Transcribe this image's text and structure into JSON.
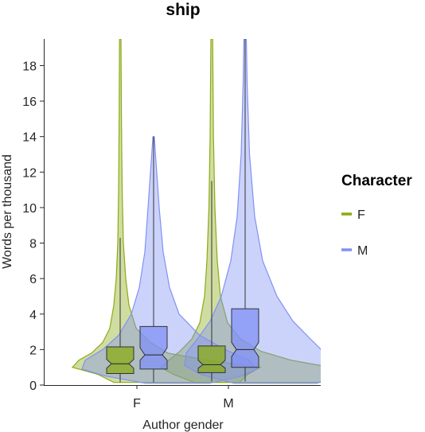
{
  "chart_data": {
    "type": "violin",
    "title": "ship",
    "xlabel": "Author gender",
    "ylabel": "Words per thousand",
    "categories": [
      "F",
      "M"
    ],
    "ylim": [
      0,
      19.5
    ],
    "yticks": [
      0,
      2,
      4,
      6,
      8,
      10,
      12,
      14,
      16,
      18
    ],
    "grid": false,
    "legend": {
      "title": "Character",
      "position": "right",
      "entries": [
        "F",
        "M"
      ]
    },
    "series": [
      {
        "name": "F",
        "color": "#8aab14",
        "groups": [
          {
            "category": "F",
            "q1": 0.65,
            "median": 1.2,
            "q3": 2.15,
            "notch_low": 0.95,
            "notch_high": 1.45,
            "whisker_low": 0.15,
            "whisker_high": 8.3,
            "max": 19.5
          },
          {
            "category": "M",
            "q1": 0.7,
            "median": 1.15,
            "q3": 2.2,
            "notch_low": 0.95,
            "notch_high": 1.4,
            "whisker_low": 0.2,
            "whisker_high": 11.5,
            "max": 19.5
          }
        ]
      },
      {
        "name": "M",
        "color": "#8090f5",
        "groups": [
          {
            "category": "F",
            "q1": 0.9,
            "median": 1.7,
            "q3": 3.3,
            "notch_low": 1.4,
            "notch_high": 2.1,
            "whisker_low": 0.15,
            "whisker_high": 14.0,
            "max": 14.0
          },
          {
            "category": "M",
            "q1": 1.0,
            "median": 2.0,
            "q3": 4.3,
            "notch_low": 1.6,
            "notch_high": 2.4,
            "whisker_low": 0.2,
            "whisker_high": 19.5,
            "max": 19.5
          }
        ]
      }
    ]
  }
}
